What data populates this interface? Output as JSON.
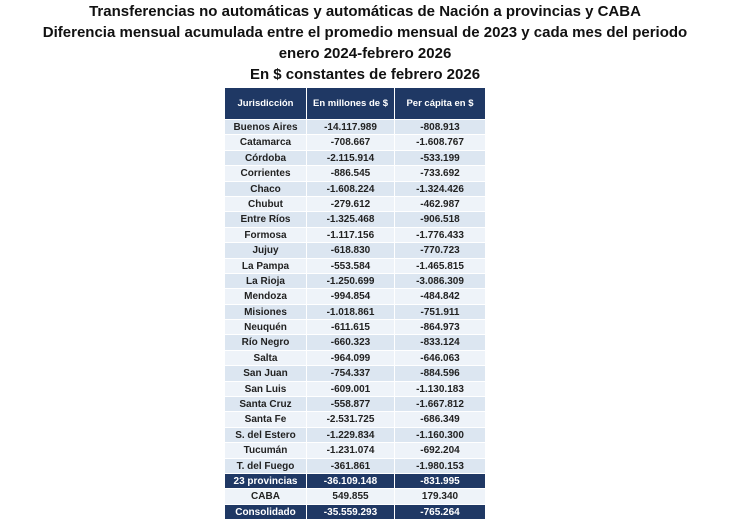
{
  "header": {
    "title": [
      "Transferencias no automáticas y automáticas de Nación a provincias y CABA",
      "Diferencia mensual acumulada entre el promedio mensual de 2023 y cada mes del periodo",
      "enero 2024-febrero 2026",
      "En $ constantes de febrero 2026"
    ]
  },
  "table": {
    "columns": [
      "Jurisdicción",
      "En millones de $",
      "Per cápita en $"
    ],
    "rows": [
      [
        "Buenos Aires",
        "-14.117.989",
        "-808.913"
      ],
      [
        "Catamarca",
        "-708.667",
        "-1.608.767"
      ],
      [
        "Córdoba",
        "-2.115.914",
        "-533.199"
      ],
      [
        "Corrientes",
        "-886.545",
        "-733.692"
      ],
      [
        "Chaco",
        "-1.608.224",
        "-1.324.426"
      ],
      [
        "Chubut",
        "-279.612",
        "-462.987"
      ],
      [
        "Entre Ríos",
        "-1.325.468",
        "-906.518"
      ],
      [
        "Formosa",
        "-1.117.156",
        "-1.776.433"
      ],
      [
        "Jujuy",
        "-618.830",
        "-770.723"
      ],
      [
        "La Pampa",
        "-553.584",
        "-1.465.815"
      ],
      [
        "La Rioja",
        "-1.250.699",
        "-3.086.309"
      ],
      [
        "Mendoza",
        "-994.854",
        "-484.842"
      ],
      [
        "Misiones",
        "-1.018.861",
        "-751.911"
      ],
      [
        "Neuquén",
        "-611.615",
        "-864.973"
      ],
      [
        "Río Negro",
        "-660.323",
        "-833.124"
      ],
      [
        "Salta",
        "-964.099",
        "-646.063"
      ],
      [
        "San Juan",
        "-754.337",
        "-884.596"
      ],
      [
        "San Luis",
        "-609.001",
        "-1.130.183"
      ],
      [
        "Santa Cruz",
        "-558.877",
        "-1.667.812"
      ],
      [
        "Santa Fe",
        "-2.531.725",
        "-686.349"
      ],
      [
        "S. del Estero",
        "-1.229.834",
        "-1.160.300"
      ],
      [
        "Tucumán",
        "-1.231.074",
        "-692.204"
      ],
      [
        "T. del Fuego",
        "-361.861",
        "-1.980.153"
      ]
    ],
    "totals": [
      [
        "23 provincias",
        "-36.109.148",
        "-831.995"
      ],
      [
        "CABA",
        "549.855",
        "179.340"
      ],
      [
        "Consolidado",
        "-35.559.293",
        "-765.264"
      ]
    ]
  }
}
